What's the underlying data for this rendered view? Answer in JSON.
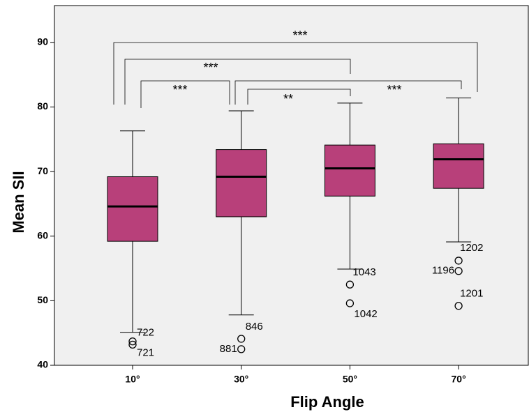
{
  "chart_data": {
    "type": "box",
    "x_label": "Flip Angle",
    "y_label": "Mean  SII",
    "categories": [
      "10°",
      "30°",
      "50°",
      "70°"
    ],
    "color": "#b8407a",
    "ylim": [
      40,
      95.7
    ],
    "yticks": [
      40,
      50,
      60,
      70,
      80,
      90
    ],
    "grid": false,
    "boxes": [
      {
        "min": 45.1,
        "q1": 59.2,
        "median": 64.6,
        "q3": 69.2,
        "max": 76.3,
        "outliers": [
          {
            "label": "722",
            "value": 43.7
          },
          {
            "label": "721",
            "value": 43.2
          }
        ]
      },
      {
        "min": 47.8,
        "q1": 63.0,
        "median": 69.2,
        "q3": 73.4,
        "max": 79.4,
        "outliers": [
          {
            "label": "846",
            "value": 44.1
          },
          {
            "label": "881",
            "value": 42.5
          }
        ]
      },
      {
        "min": 54.9,
        "q1": 66.2,
        "median": 70.5,
        "q3": 74.1,
        "max": 80.6,
        "outliers": [
          {
            "label": "1043",
            "value": 52.5
          },
          {
            "label": "1042",
            "value": 49.6
          }
        ]
      },
      {
        "min": 59.1,
        "q1": 67.4,
        "median": 71.9,
        "q3": 74.3,
        "max": 81.4,
        "outliers": [
          {
            "label": "1202",
            "value": 56.2
          },
          {
            "label": "1196",
            "value": 54.6
          },
          {
            "label": "1201",
            "value": 49.2
          }
        ]
      }
    ],
    "significance": [
      {
        "label": "***"
      },
      {
        "label": "***"
      },
      {
        "label": "***"
      },
      {
        "label": "***"
      },
      {
        "label": "**"
      }
    ]
  }
}
